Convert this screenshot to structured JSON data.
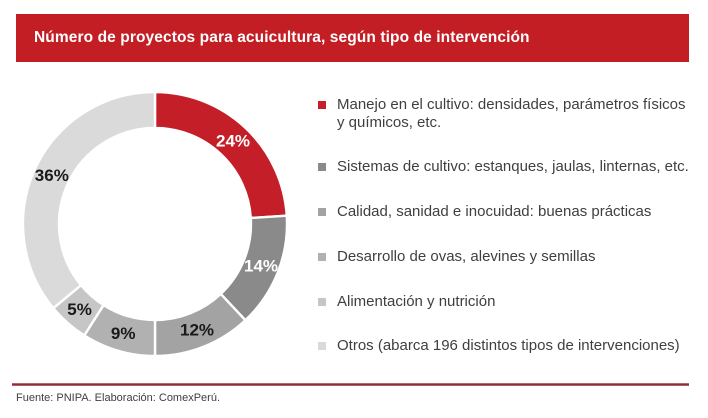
{
  "title": "Número de proyectos para acuicultura, según tipo de intervención",
  "source": "Fuente: PNIPA. Elaboración: ComexPerú.",
  "colors": {
    "header_bg": "#C41E25",
    "header_text": "#FFFFFF",
    "divider": "#8C2F3A",
    "legend_text": "#3F3F3F",
    "donut_hole": "#FFFFFF"
  },
  "chart_data": {
    "type": "pie",
    "subtype": "donut",
    "title": "Número de proyectos para acuicultura, según tipo de intervención",
    "legend_position": "right",
    "start_angle_deg": 0,
    "direction": "clockwise",
    "slices": [
      {
        "label": "Manejo en el cultivo: densidades, parámetros físicos y químicos, etc.",
        "value_pct": 24,
        "value_label": "24%",
        "color": "#C41E28",
        "label_color": "#FFFFFF"
      },
      {
        "label": "Sistemas de cultivo: estanques, jaulas, linternas, etc.",
        "value_pct": 14,
        "value_label": "14%",
        "color": "#8A8A8A",
        "label_color": "#FFFFFF"
      },
      {
        "label": "Calidad, sanidad e inocuidad: buenas prácticas",
        "value_pct": 12,
        "value_label": "12%",
        "color": "#A3A3A3",
        "label_color": "#1A1A1A"
      },
      {
        "label": "Desarrollo de ovas, alevines y semillas",
        "value_pct": 9,
        "value_label": "9%",
        "color": "#B1B1B1",
        "label_color": "#1A1A1A"
      },
      {
        "label": "Alimentación y nutrición",
        "value_pct": 5,
        "value_label": "5%",
        "color": "#C6C6C6",
        "label_color": "#1A1A1A"
      },
      {
        "label": "Otros (abarca 196 distintos tipos de intervenciones)",
        "value_pct": 36,
        "value_label": "36%",
        "color": "#DADADA",
        "label_color": "#1A1A1A"
      }
    ]
  }
}
